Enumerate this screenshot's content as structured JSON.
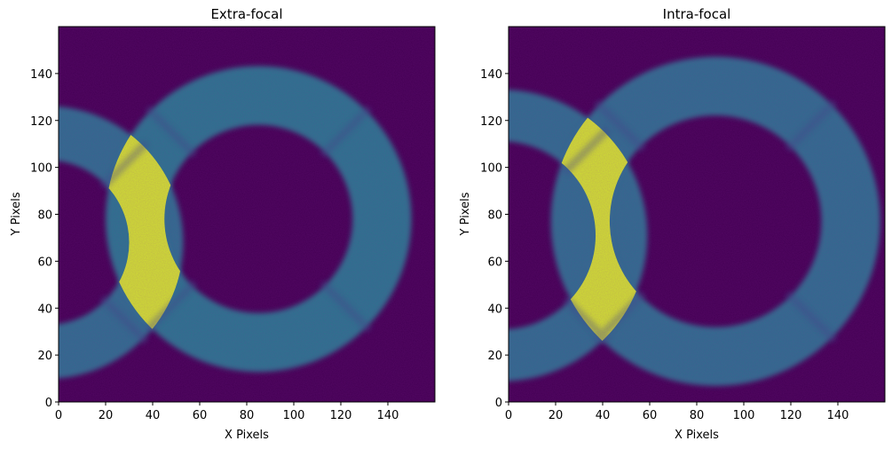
{
  "figure": {
    "panels": [
      {
        "title": "Extra-focal",
        "xlabel": "X Pixels",
        "ylabel": "Y Pixels"
      },
      {
        "title": "Intra-focal",
        "xlabel": "X Pixels",
        "ylabel": "Y Pixels"
      }
    ]
  },
  "colors": {
    "colormap": "viridis",
    "background": "#440154",
    "ring": "#2f9e8c",
    "bright": "#fde725"
  },
  "chart_data": [
    {
      "type": "heatmap",
      "title": "Extra-focal",
      "xlabel": "X Pixels",
      "ylabel": "Y Pixels",
      "xlim": [
        0,
        160
      ],
      "ylim": [
        0,
        160
      ],
      "xticks": [
        0,
        20,
        40,
        60,
        80,
        100,
        120,
        140
      ],
      "yticks": [
        0,
        20,
        40,
        60,
        80,
        100,
        120,
        140
      ],
      "origin": "lower",
      "colormap": "viridis",
      "donut": {
        "center": [
          85,
          78
        ],
        "outer_radius": 65,
        "inner_radius": 40,
        "intensity": 0.48
      },
      "neighbor_donut": {
        "center": [
          -5,
          68
        ],
        "outer_radius": 58,
        "inner_radius": 35,
        "intensity": 0.45
      },
      "overlap_peak_intensity": 0.95,
      "spider_vanes": 4
    },
    {
      "type": "heatmap",
      "title": "Intra-focal",
      "xlabel": "X Pixels",
      "ylabel": "Y Pixels",
      "xlim": [
        0,
        160
      ],
      "ylim": [
        0,
        160
      ],
      "xticks": [
        0,
        20,
        40,
        60,
        80,
        100,
        120,
        140
      ],
      "yticks": [
        0,
        20,
        40,
        60,
        80,
        100,
        120,
        140
      ],
      "origin": "lower",
      "colormap": "viridis",
      "donut": {
        "center": [
          88,
          77
        ],
        "outer_radius": 70,
        "inner_radius": 45,
        "intensity": 0.45
      },
      "neighbor_donut": {
        "center": [
          -3,
          71
        ],
        "outer_radius": 62,
        "inner_radius": 40,
        "intensity": 0.45
      },
      "overlap_peak_intensity": 0.95,
      "spider_vanes": 4
    }
  ]
}
